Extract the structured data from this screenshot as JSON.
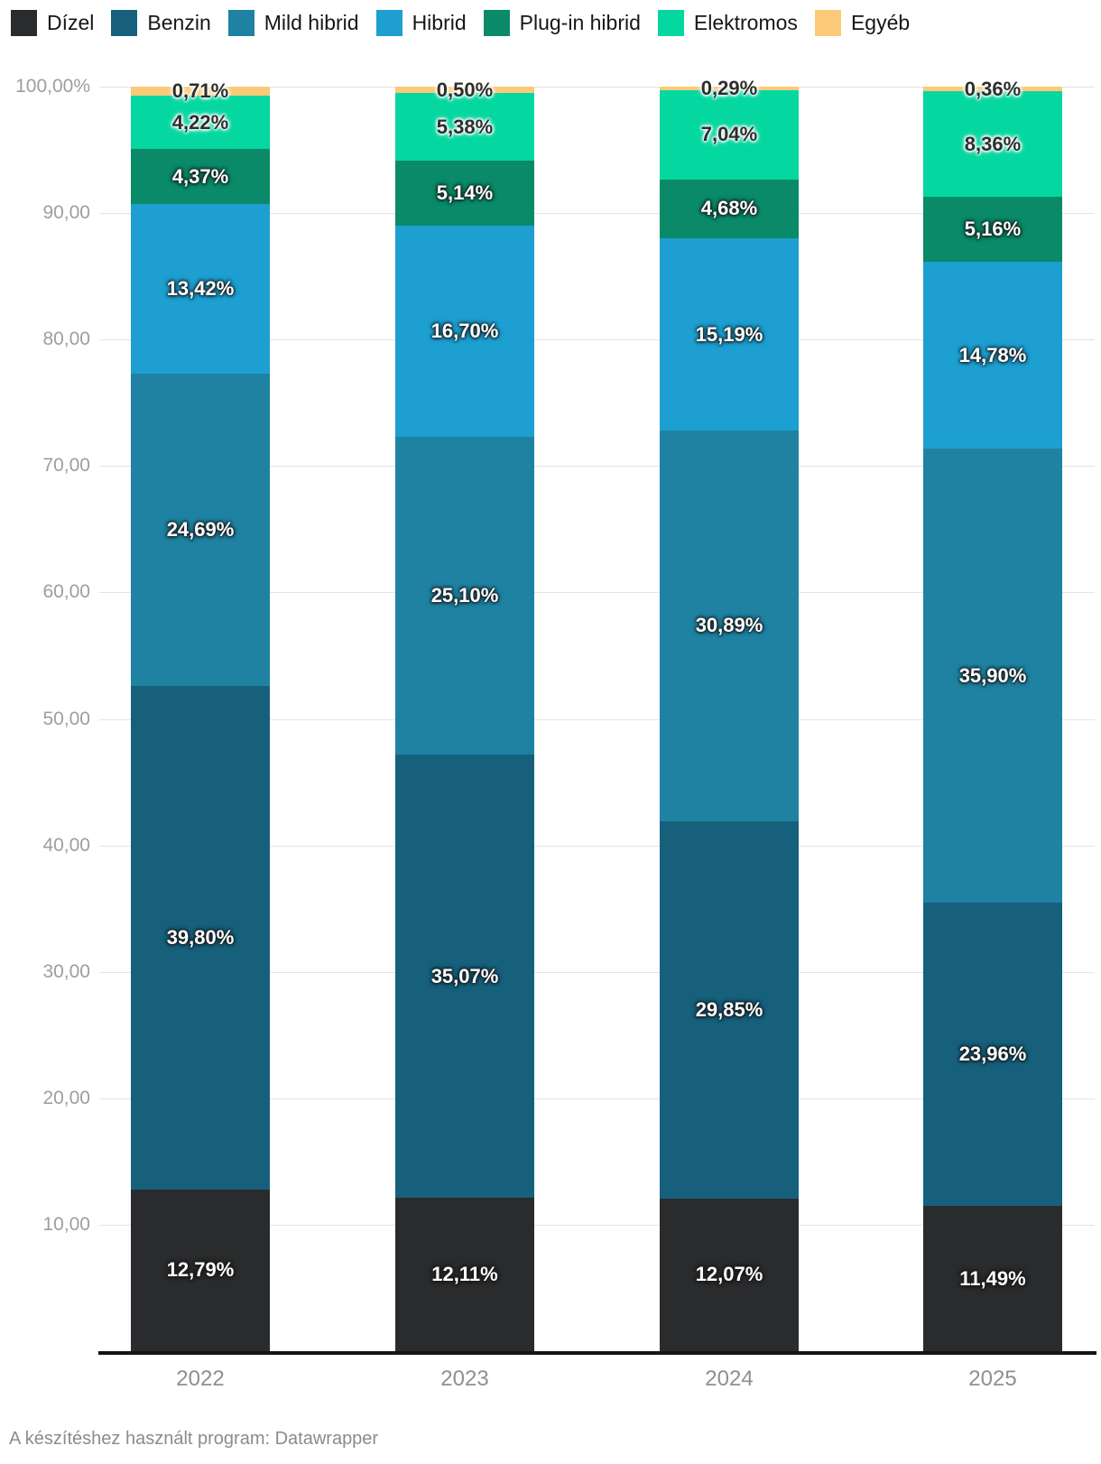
{
  "footer": {
    "text": "A készítéshez használt program: Datawrapper"
  },
  "chart_data": {
    "type": "bar",
    "stacked": true,
    "percent": true,
    "title": "",
    "xlabel": "",
    "ylabel": "",
    "legend_position": "top",
    "grid": true,
    "categories": [
      "2022",
      "2023",
      "2024",
      "2025"
    ],
    "series": [
      {
        "name": "Dízel",
        "color": "#2a2b2c",
        "label_style": "light",
        "values": [
          12.79,
          12.11,
          12.07,
          11.49
        ],
        "labels": [
          "12,79%",
          "12,11%",
          "12,07%",
          "11,49%"
        ]
      },
      {
        "name": "Benzin",
        "color": "#16607c",
        "label_style": "light",
        "values": [
          39.8,
          35.07,
          29.85,
          23.96
        ],
        "labels": [
          "39,80%",
          "35,07%",
          "29,85%",
          "23,96%"
        ]
      },
      {
        "name": "Mild hibrid",
        "color": "#1f82a2",
        "label_style": "light",
        "values": [
          24.69,
          25.1,
          30.89,
          35.9
        ],
        "labels": [
          "24,69%",
          "25,10%",
          "30,89%",
          "35,90%"
        ]
      },
      {
        "name": "Hibrid",
        "color": "#1d9fd1",
        "label_style": "light",
        "values": [
          13.42,
          16.7,
          15.19,
          14.78
        ],
        "labels": [
          "13,42%",
          "16,70%",
          "15,19%",
          "14,78%"
        ]
      },
      {
        "name": "Plug-in hibrid",
        "color": "#0a8a69",
        "label_style": "light",
        "values": [
          4.37,
          5.14,
          4.68,
          5.16
        ],
        "labels": [
          "4,37%",
          "5,14%",
          "4,68%",
          "5,16%"
        ]
      },
      {
        "name": "Elektromos",
        "color": "#04d7a0",
        "label_style": "dark",
        "values": [
          4.22,
          5.38,
          7.04,
          8.36
        ],
        "labels": [
          "4,22%",
          "5,38%",
          "7,04%",
          "8,36%"
        ]
      },
      {
        "name": "Egyéb",
        "color": "#fbca78",
        "label_style": "dark",
        "values": [
          0.71,
          0.5,
          0.29,
          0.36
        ],
        "labels": [
          "0,71%",
          "0,50%",
          "0,29%",
          "0,36%"
        ]
      }
    ],
    "y_axis": {
      "min": 0,
      "max": 100,
      "tick_step": 10,
      "ticks": [
        10,
        20,
        30,
        40,
        50,
        60,
        70,
        80,
        90,
        100
      ],
      "tick_labels": [
        "10,00",
        "20,00",
        "30,00",
        "40,00",
        "50,00",
        "60,00",
        "70,00",
        "80,00",
        "90,00",
        "100,00%"
      ]
    }
  }
}
